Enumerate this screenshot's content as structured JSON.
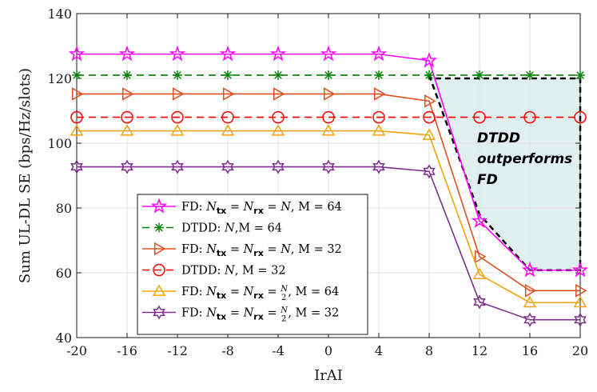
{
  "chart_data": {
    "type": "line",
    "xlabel": "IrAI",
    "ylabel": "Sum UL-DL SE (bps/Hz/slots)",
    "x": [
      -20,
      -16,
      -12,
      -8,
      -4,
      0,
      4,
      8,
      12,
      16,
      20
    ],
    "xticks": [
      "-20",
      "-16",
      "-12",
      "-8",
      "-4",
      "0",
      "4",
      "8",
      "12",
      "16",
      "20"
    ],
    "yticks": [
      "40",
      "60",
      "80",
      "100",
      "120",
      "140"
    ],
    "xlim": [
      -20,
      20
    ],
    "ylim": [
      40,
      140
    ],
    "grid": true,
    "legend_position": "lower-left",
    "series": [
      {
        "name": "FD: N_tx = N_rx = N, M = 64",
        "color": "#ff00ff",
        "marker": "pentagram",
        "dash": "solid",
        "values": [
          127.5,
          127.5,
          127.5,
          127.5,
          127.5,
          127.5,
          127.5,
          125.5,
          76,
          60.8,
          60.8
        ]
      },
      {
        "name": "DTDD: N, M = 64",
        "color": "#008000",
        "marker": "asterisk",
        "dash": "dashed",
        "values": [
          121,
          121,
          121,
          121,
          121,
          121,
          121,
          121,
          121,
          121,
          121
        ]
      },
      {
        "name": "FD: N_tx = N_rx = N, M = 32",
        "color": "#e0501f",
        "marker": "triangle-right",
        "dash": "solid",
        "values": [
          115.2,
          115.2,
          115.2,
          115.2,
          115.2,
          115.2,
          115.2,
          113,
          65,
          54.5,
          54.5
        ]
      },
      {
        "name": "DTDD: N, M = 32",
        "color": "#ff0000",
        "marker": "circle",
        "dash": "dashed",
        "values": [
          108,
          108,
          108,
          108,
          108,
          108,
          108,
          108,
          108,
          108,
          108
        ]
      },
      {
        "name": "FD: N_tx = N_rx = N/2, M = 64",
        "color": "#f0a30a",
        "marker": "triangle-up",
        "dash": "solid",
        "values": [
          103.8,
          103.8,
          103.8,
          103.8,
          103.8,
          103.8,
          103.8,
          102.5,
          59.5,
          50.8,
          50.8
        ]
      },
      {
        "name": "FD: N_tx = N_rx = N/2, M = 32",
        "color": "#7e2f8e",
        "marker": "hexagram",
        "dash": "solid",
        "values": [
          92.7,
          92.7,
          92.7,
          92.7,
          92.7,
          92.7,
          92.7,
          91.3,
          51,
          45.5,
          45.5
        ]
      }
    ],
    "legend": [
      {
        "prefix": "FD: ",
        "N_tx": "N",
        "sub_tx": "tx",
        "eq": " = ",
        "N_rx": "N",
        "sub_rx": "rx",
        "val": "N",
        "fracval": false,
        "suffix": ", M = 64"
      },
      {
        "text": "DTDD: ",
        "italic": "N",
        "suffix": ",M = 64"
      },
      {
        "prefix": "FD: ",
        "N_tx": "N",
        "sub_tx": "tx",
        "eq": " = ",
        "N_rx": "N",
        "sub_rx": "rx",
        "val": "N",
        "fracval": false,
        "suffix": ", M = 32"
      },
      {
        "text": "DTDD: ",
        "italic": "N",
        "suffix": ", M = 32"
      },
      {
        "prefix": "FD: ",
        "N_tx": "N",
        "sub_tx": "tx",
        "eq": " = ",
        "N_rx": "N",
        "sub_rx": "rx",
        "val": "N",
        "fracval": true,
        "den": "2",
        "suffix": ", M = 64"
      },
      {
        "prefix": "FD: ",
        "N_tx": "N",
        "sub_tx": "tx",
        "eq": " = ",
        "N_rx": "N",
        "sub_rx": "rx",
        "val": "N",
        "fracval": true,
        "den": "2",
        "suffix": ", M = 32"
      }
    ],
    "annotation": {
      "lines": [
        "DTDD",
        "outperforms",
        "FD"
      ],
      "region_color": "#dff0ee",
      "region_polygon": [
        [
          8,
          121
        ],
        [
          12,
          78
        ],
        [
          16,
          60.8
        ],
        [
          20,
          60.8
        ],
        [
          20,
          120
        ],
        [
          8,
          120
        ]
      ]
    }
  }
}
